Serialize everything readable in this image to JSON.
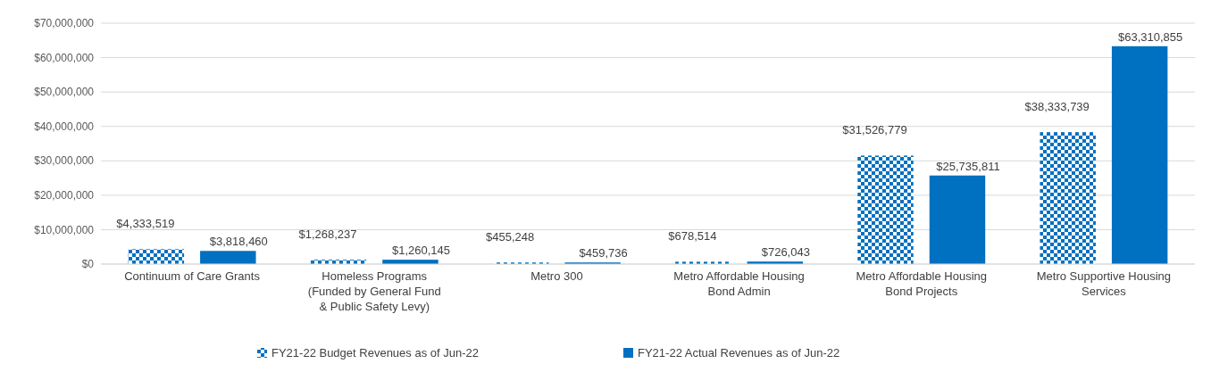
{
  "chart_data": {
    "type": "bar",
    "categories": [
      "Continuum of Care Grants",
      "Homeless Programs (Funded by General Fund & Public Safety Levy)",
      "Metro 300",
      "Metro Affordable Housing Bond Admin",
      "Metro Affordable Housing Bond Projects",
      "Metro Supportive Housing Services"
    ],
    "series": [
      {
        "name": "FY21-22 Budget Revenues as of Jun-22",
        "color": "#0070c0",
        "values": [
          4333519,
          1268237,
          455248,
          678514,
          31526779,
          38333739
        ],
        "value_labels": [
          "$4,333,519",
          "$1,268,237",
          "$455,248",
          "$678,514",
          "$31,526,779",
          "$38,333,739"
        ]
      },
      {
        "name": "FY21-22 Actual Revenues as of Jun-22",
        "color": "#0070c0",
        "values": [
          3818460,
          1260145,
          459736,
          726043,
          25735811,
          63310855
        ],
        "value_labels": [
          "$3,818,460",
          "$1,260,145",
          "$459,736",
          "$726,043",
          "$25,735,811",
          "$63,310,855"
        ]
      }
    ],
    "ylim": [
      0,
      70000000
    ],
    "yticks": [
      {
        "value": 0,
        "label": "$0"
      },
      {
        "value": 10000000,
        "label": "$10,000,000"
      },
      {
        "value": 20000000,
        "label": "$20,000,000"
      },
      {
        "value": 30000000,
        "label": "$30,000,000"
      },
      {
        "value": 40000000,
        "label": "$40,000,000"
      },
      {
        "value": 50000000,
        "label": "$50,000,000"
      },
      {
        "value": 60000000,
        "label": "$60,000,000"
      },
      {
        "value": 70000000,
        "label": "$70,000,000"
      }
    ],
    "grid": "y",
    "legend": "bottom"
  }
}
